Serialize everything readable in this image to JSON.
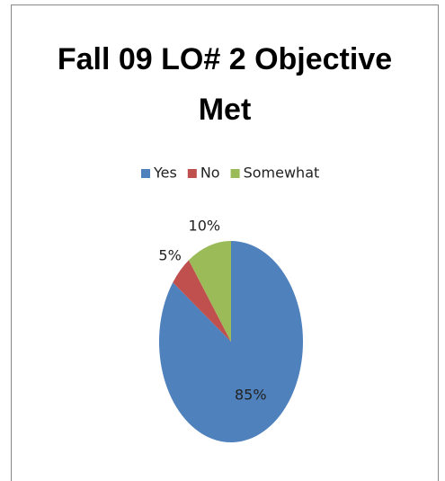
{
  "chart_data": {
    "type": "pie",
    "title": "Fall 09 LO# 2 Objective Met",
    "categories": [
      "Yes",
      "No",
      "Somewhat"
    ],
    "values": [
      85,
      5,
      10
    ],
    "value_labels": [
      "85%",
      "5%",
      "10%"
    ],
    "colors": [
      "#4f81bd",
      "#c0504d",
      "#9bbb59"
    ],
    "legend": "top"
  }
}
